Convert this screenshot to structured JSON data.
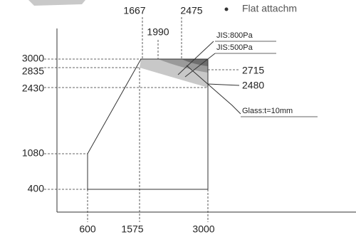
{
  "header": {
    "bullet_text": "Flat attachm"
  },
  "diagram": {
    "x_labels": [
      "600",
      "1575",
      "3000"
    ],
    "top_labels": [
      "1667",
      "2475",
      "1990"
    ],
    "y_labels": [
      "3000",
      "2835",
      "2430",
      "1080",
      "400"
    ],
    "callouts": [
      "JIS:800Pa",
      "JIS:500Pa",
      "2715",
      "2480",
      "Glass:t=10mm"
    ]
  }
}
